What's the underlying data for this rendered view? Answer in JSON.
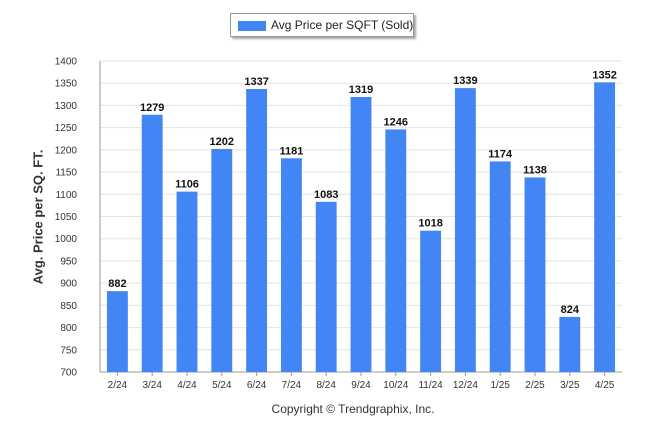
{
  "legend": {
    "label": "Avg Price per SQFT (Sold)"
  },
  "footer": {
    "text": "Copyright © Trendgraphix, Inc."
  },
  "colors": {
    "bar": "#4285f4",
    "grid": "#e4e4e4",
    "axis": "#999999"
  },
  "chart_data": {
    "type": "bar",
    "categories": [
      "2/24",
      "3/24",
      "4/24",
      "5/24",
      "6/24",
      "7/24",
      "8/24",
      "9/24",
      "10/24",
      "11/24",
      "12/24",
      "1/25",
      "2/25",
      "3/25",
      "4/25"
    ],
    "series": [
      {
        "name": "Avg Price per SQFT (Sold)",
        "values": [
          882,
          1279,
          1106,
          1202,
          1337,
          1181,
          1083,
          1319,
          1246,
          1018,
          1339,
          1174,
          1138,
          824,
          1352
        ]
      }
    ],
    "ylabel": "Avg. Price per SQ. FT.",
    "xlabel": "",
    "ylim": [
      700,
      1400
    ],
    "yticks": [
      700,
      750,
      800,
      850,
      900,
      950,
      1000,
      1050,
      1100,
      1150,
      1200,
      1250,
      1300,
      1350,
      1400
    ],
    "grid": true,
    "legend_position": "top-center"
  }
}
